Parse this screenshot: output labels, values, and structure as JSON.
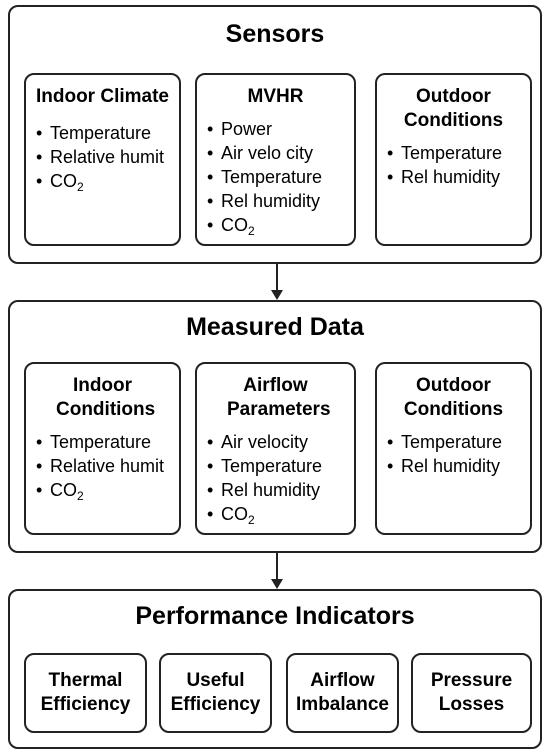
{
  "sensors": {
    "title": "Sensors",
    "cards": [
      {
        "title": "Indoor Climate",
        "items": [
          [
            "Temperature",
            ""
          ],
          [
            "Relative humit",
            ""
          ],
          [
            "CO",
            "2"
          ]
        ]
      },
      {
        "title": "MVHR",
        "items": [
          [
            "Power",
            ""
          ],
          [
            "Air velo city",
            ""
          ],
          [
            "Temperature",
            ""
          ],
          [
            "Rel humidity",
            ""
          ],
          [
            "CO",
            "2"
          ]
        ]
      },
      {
        "title": "Outdoor Conditions",
        "items": [
          [
            "Temperature",
            ""
          ],
          [
            "Rel humidity",
            ""
          ]
        ]
      }
    ]
  },
  "measured": {
    "title": "Measured Data",
    "cards": [
      {
        "title": "Indoor Conditions",
        "items": [
          [
            "Temperature",
            ""
          ],
          [
            "Relative humit",
            ""
          ],
          [
            "CO",
            "2"
          ]
        ]
      },
      {
        "title": "Airflow Parameters",
        "items": [
          [
            "Air velocity",
            ""
          ],
          [
            "Temperature",
            ""
          ],
          [
            "Rel humidity",
            ""
          ],
          [
            "CO",
            "2"
          ]
        ]
      },
      {
        "title": "Outdoor Conditions",
        "items": [
          [
            "Temperature",
            ""
          ],
          [
            "Rel humidity",
            ""
          ]
        ]
      }
    ]
  },
  "performance": {
    "title": "Performance Indicators",
    "cards": [
      "Thermal Efficiency",
      "Useful Efficiency",
      "Airflow Imbalance",
      "Pressure Losses"
    ]
  }
}
